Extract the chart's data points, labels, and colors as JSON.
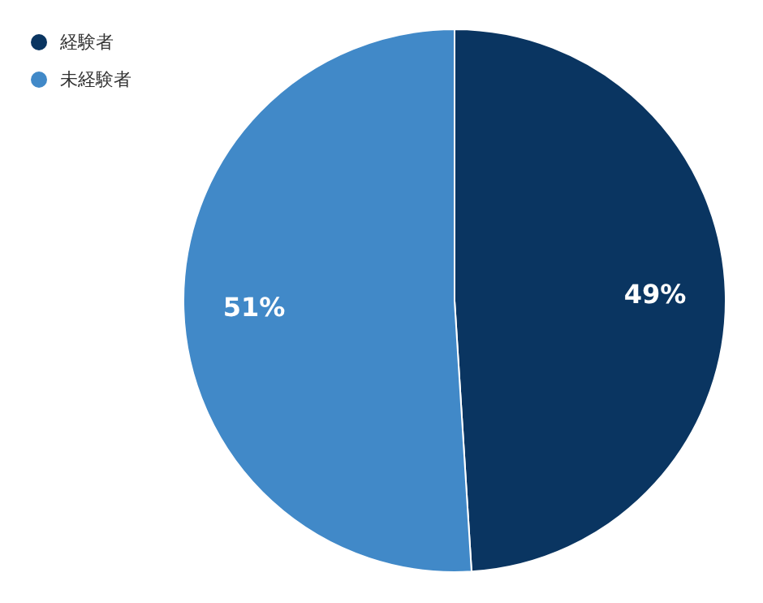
{
  "chart_data": {
    "type": "pie",
    "categories": [
      "経験者",
      "未経験者"
    ],
    "values": [
      49,
      51
    ],
    "colors": [
      "#0a3561",
      "#4189c8"
    ],
    "value_labels": [
      "49%",
      "51%"
    ],
    "legend": "top left"
  }
}
